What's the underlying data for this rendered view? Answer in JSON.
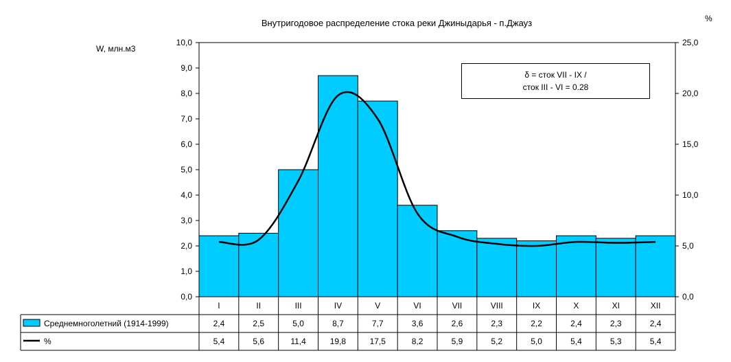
{
  "chart_data": {
    "type": "bar",
    "title": "Внутригодовое распределение стока реки Джиныдарья - п.Джауз",
    "ylabel": "W, млн.м3",
    "y2label": "%",
    "ylim": [
      0,
      10
    ],
    "y2lim": [
      0,
      25
    ],
    "yticks": [
      "0,0",
      "1,0",
      "2,0",
      "3,0",
      "4,0",
      "5,0",
      "6,0",
      "7,0",
      "8,0",
      "9,0",
      "10,0"
    ],
    "y2ticks": [
      "0,0",
      "5,0",
      "10,0",
      "15,0",
      "20,0",
      "25,0"
    ],
    "categories": [
      "I",
      "II",
      "III",
      "IV",
      "V",
      "VI",
      "VII",
      "VIII",
      "IX",
      "X",
      "XI",
      "XII"
    ],
    "series": [
      {
        "name": "Среднемноголетний (1914-1999)",
        "type": "bar",
        "axis": "left",
        "color": "#00ccff",
        "values": [
          2.4,
          2.5,
          5.0,
          8.7,
          7.7,
          3.6,
          2.6,
          2.3,
          2.2,
          2.4,
          2.3,
          2.4
        ],
        "labels": [
          "2,4",
          "2,5",
          "5,0",
          "8,7",
          "7,7",
          "3,6",
          "2,6",
          "2,3",
          "2,2",
          "2,4",
          "2,3",
          "2,4"
        ]
      },
      {
        "name": "%",
        "type": "line",
        "axis": "right",
        "color": "#000000",
        "values": [
          5.4,
          5.6,
          11.4,
          19.8,
          17.5,
          8.2,
          5.9,
          5.2,
          5.0,
          5.4,
          5.3,
          5.4
        ],
        "labels": [
          "5,4",
          "5,6",
          "11,4",
          "19,8",
          "17,5",
          "8,2",
          "5,9",
          "5,2",
          "5,0",
          "5,4",
          "5,3",
          "5,4"
        ]
      }
    ],
    "annotation": [
      "δ = сток VII - IX /",
      "сток III - VI = 0.28"
    ],
    "grid": false,
    "legend": "data-table"
  }
}
